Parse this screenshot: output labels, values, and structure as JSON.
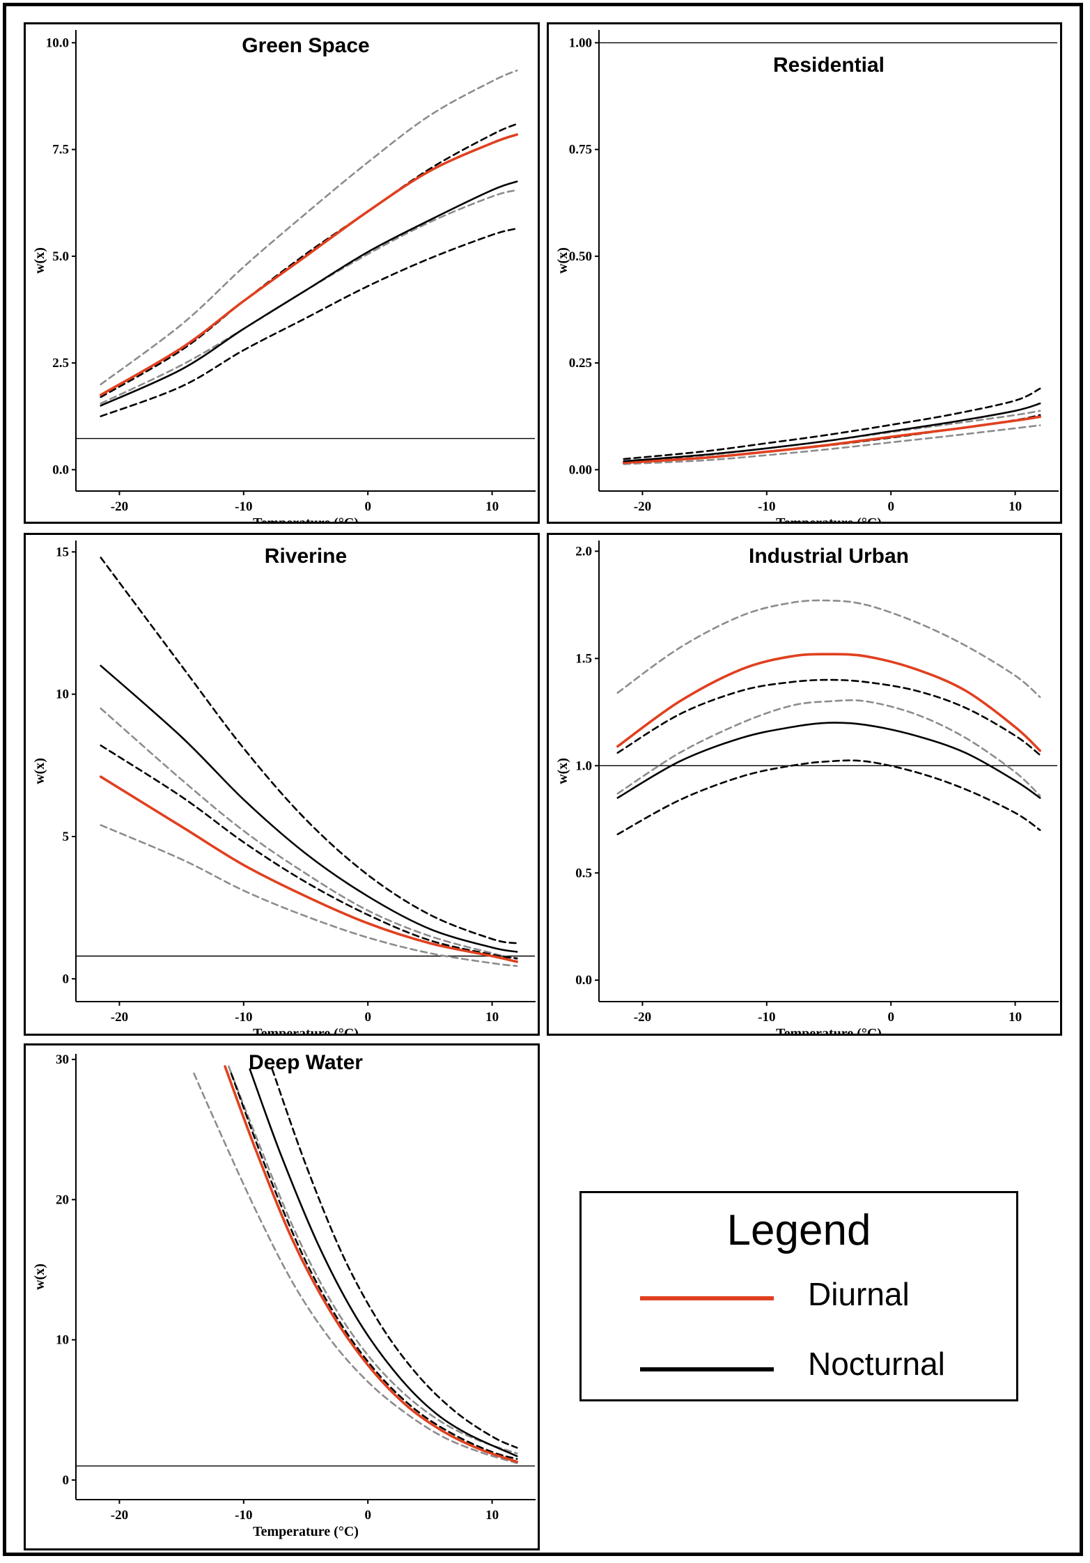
{
  "legend": {
    "title": "Legend",
    "items": [
      {
        "label": "Diurnal",
        "color": "#e0401f"
      },
      {
        "label": "Nocturnal",
        "color": "#000000"
      }
    ]
  },
  "colors": {
    "diurnal": "#e0401f",
    "nocturnal": "#000000",
    "diurnal_ci": "#8c8c8c",
    "nocturnal_ci": "#000000"
  },
  "chart_data": [
    {
      "type": "line",
      "title": "Green Space",
      "xlabel": "Temperature (°C)",
      "ylabel": "w(x)",
      "xlim": [
        -23.5,
        13.5
      ],
      "ylim": [
        -0.5,
        10.3
      ],
      "hline": 0.73,
      "xticks": [
        -20,
        -10,
        0,
        10
      ],
      "xtick_labels": [
        "-20",
        "-10",
        "0",
        "10"
      ],
      "yticks": [
        0,
        2.5,
        5,
        7.5,
        10
      ],
      "ytick_labels": [
        "0.0",
        "2.5",
        "5.0",
        "7.5",
        "10.0"
      ],
      "x": [
        -21.5,
        -15,
        -10,
        -5,
        0,
        5,
        10,
        12
      ],
      "series": [
        {
          "name": "Diurnal",
          "role": "diurnal",
          "values": [
            1.75,
            2.85,
            3.95,
            5.0,
            6.05,
            7.0,
            7.65,
            7.85
          ]
        },
        {
          "name": "",
          "role": "diurnal_ci",
          "values": [
            2.0,
            3.4,
            4.75,
            6.0,
            7.2,
            8.3,
            9.1,
            9.35
          ]
        },
        {
          "name": "",
          "role": "diurnal_ci",
          "values": [
            1.55,
            2.45,
            3.3,
            4.2,
            5.05,
            5.8,
            6.4,
            6.55
          ]
        },
        {
          "name": "Nocturnal",
          "role": "nocturnal",
          "values": [
            1.5,
            2.35,
            3.3,
            4.2,
            5.1,
            5.85,
            6.55,
            6.75
          ]
        },
        {
          "name": "",
          "role": "nocturnal_ci",
          "values": [
            1.7,
            2.8,
            3.95,
            5.05,
            6.05,
            7.05,
            7.85,
            8.1
          ]
        },
        {
          "name": "",
          "role": "nocturnal_ci",
          "values": [
            1.25,
            1.95,
            2.8,
            3.55,
            4.3,
            4.95,
            5.5,
            5.65
          ]
        }
      ]
    },
    {
      "type": "line",
      "title": "Residential",
      "xlabel": "Temperature (°C)",
      "ylabel": "w(x)",
      "xlim": [
        -23.5,
        13.5
      ],
      "ylim": [
        -0.05,
        1.03
      ],
      "hline": 1.0,
      "xticks": [
        -20,
        -10,
        0,
        10
      ],
      "xtick_labels": [
        "-20",
        "-10",
        "0",
        "10"
      ],
      "yticks": [
        0,
        0.25,
        0.5,
        0.75,
        1.0
      ],
      "ytick_labels": [
        "0.00",
        "0.25",
        "0.50",
        "0.75",
        "1.00"
      ],
      "x": [
        -21.5,
        -15,
        -10,
        -5,
        0,
        5,
        10,
        12
      ],
      "series": [
        {
          "name": "Diurnal",
          "role": "diurnal",
          "values": [
            0.016,
            0.028,
            0.042,
            0.058,
            0.077,
            0.095,
            0.115,
            0.124
          ]
        },
        {
          "name": "",
          "role": "diurnal_ci",
          "values": [
            0.02,
            0.034,
            0.05,
            0.068,
            0.088,
            0.108,
            0.128,
            0.138
          ]
        },
        {
          "name": "",
          "role": "diurnal_ci",
          "values": [
            0.013,
            0.022,
            0.034,
            0.048,
            0.064,
            0.08,
            0.097,
            0.104
          ]
        },
        {
          "name": "Nocturnal",
          "role": "nocturnal",
          "values": [
            0.02,
            0.035,
            0.05,
            0.068,
            0.09,
            0.112,
            0.138,
            0.155
          ]
        },
        {
          "name": "",
          "role": "nocturnal_ci",
          "values": [
            0.025,
            0.043,
            0.062,
            0.082,
            0.105,
            0.13,
            0.162,
            0.19
          ]
        },
        {
          "name": "",
          "role": "nocturnal_ci",
          "values": [
            0.017,
            0.029,
            0.042,
            0.057,
            0.075,
            0.095,
            0.116,
            0.128
          ]
        }
      ]
    },
    {
      "type": "line",
      "title": "Riverine",
      "xlabel": "Temperature (°C)",
      "ylabel": "w(x)",
      "xlim": [
        -23.5,
        13.5
      ],
      "ylim": [
        -0.8,
        15.4
      ],
      "hline": 0.8,
      "xticks": [
        -20,
        -10,
        0,
        10
      ],
      "xtick_labels": [
        "-20",
        "-10",
        "0",
        "10"
      ],
      "yticks": [
        0,
        5,
        10,
        15
      ],
      "ytick_labels": [
        "0",
        "5",
        "10",
        "15"
      ],
      "x": [
        -21.5,
        -15,
        -10,
        -5,
        0,
        5,
        10,
        12
      ],
      "series": [
        {
          "name": "Diurnal",
          "role": "diurnal",
          "values": [
            7.1,
            5.35,
            4.0,
            2.9,
            1.95,
            1.25,
            0.8,
            0.6
          ]
        },
        {
          "name": "",
          "role": "diurnal_ci",
          "values": [
            9.5,
            7.0,
            5.2,
            3.7,
            2.4,
            1.5,
            0.9,
            0.7
          ]
        },
        {
          "name": "",
          "role": "diurnal_ci",
          "values": [
            5.4,
            4.2,
            3.1,
            2.2,
            1.45,
            0.9,
            0.55,
            0.45
          ]
        },
        {
          "name": "Nocturnal",
          "role": "nocturnal",
          "values": [
            11.0,
            8.5,
            6.3,
            4.4,
            2.9,
            1.75,
            1.1,
            0.95
          ]
        },
        {
          "name": "",
          "role": "nocturnal_ci",
          "values": [
            14.8,
            11.0,
            8.1,
            5.6,
            3.65,
            2.25,
            1.4,
            1.25
          ]
        },
        {
          "name": "",
          "role": "nocturnal_ci",
          "values": [
            8.2,
            6.4,
            4.8,
            3.4,
            2.25,
            1.35,
            0.85,
            0.72
          ]
        }
      ]
    },
    {
      "type": "line",
      "title": "Industrial Urban",
      "xlabel": "Temperature (°C)",
      "ylabel": "w(x)",
      "xlim": [
        -23.5,
        13.5
      ],
      "ylim": [
        -0.1,
        2.05
      ],
      "hline": 1.0,
      "xticks": [
        -20,
        -10,
        0,
        10
      ],
      "xtick_labels": [
        "-20",
        "-10",
        "0",
        "10"
      ],
      "yticks": [
        0,
        0.5,
        1.0,
        1.5,
        2.0
      ],
      "ytick_labels": [
        "0.0",
        "0.5",
        "1.0",
        "1.5",
        "2.0"
      ],
      "x": [
        -22,
        -17,
        -12,
        -8,
        -5,
        -2,
        2,
        6,
        10,
        12
      ],
      "series": [
        {
          "name": "Diurnal",
          "role": "diurnal",
          "values": [
            1.09,
            1.3,
            1.45,
            1.51,
            1.52,
            1.51,
            1.45,
            1.35,
            1.18,
            1.07
          ]
        },
        {
          "name": "",
          "role": "diurnal_ci",
          "values": [
            1.34,
            1.55,
            1.7,
            1.76,
            1.77,
            1.75,
            1.67,
            1.56,
            1.42,
            1.32
          ]
        },
        {
          "name": "",
          "role": "diurnal_ci",
          "values": [
            0.87,
            1.06,
            1.2,
            1.28,
            1.3,
            1.3,
            1.24,
            1.13,
            0.97,
            0.86
          ]
        },
        {
          "name": "Nocturnal",
          "role": "nocturnal",
          "values": [
            0.85,
            1.02,
            1.13,
            1.18,
            1.2,
            1.19,
            1.14,
            1.06,
            0.93,
            0.85
          ]
        },
        {
          "name": "",
          "role": "nocturnal_ci",
          "values": [
            1.06,
            1.24,
            1.35,
            1.39,
            1.4,
            1.39,
            1.35,
            1.27,
            1.14,
            1.05
          ]
        },
        {
          "name": "",
          "role": "nocturnal_ci",
          "values": [
            0.68,
            0.84,
            0.95,
            1.0,
            1.02,
            1.02,
            0.97,
            0.89,
            0.78,
            0.7
          ]
        }
      ]
    },
    {
      "type": "line",
      "title": "Deep Water",
      "xlabel": "Temperature (°C)",
      "ylabel": "w(x)",
      "xlim": [
        -23.5,
        13.5
      ],
      "ylim": [
        -1.4,
        30.4
      ],
      "hline": 1.0,
      "xticks": [
        -20,
        -10,
        0,
        10
      ],
      "xtick_labels": [
        "-20",
        "-10",
        "0",
        "10"
      ],
      "yticks": [
        0,
        10,
        20,
        30
      ],
      "ytick_labels": [
        "0",
        "10",
        "20",
        "30"
      ],
      "series": [
        {
          "name": "Diurnal",
          "role": "diurnal",
          "x": [
            -11.5,
            -9,
            -6,
            -3,
            0,
            3,
            6,
            9,
            12
          ],
          "values": [
            29.5,
            23.5,
            17.0,
            12.0,
            8.2,
            5.4,
            3.5,
            2.2,
            1.3
          ]
        },
        {
          "name": "",
          "role": "diurnal_ci",
          "x": [
            -14,
            -12,
            -9,
            -6,
            -3,
            0,
            3,
            6,
            9,
            12
          ],
          "values": [
            29.0,
            25.0,
            19.2,
            14.0,
            10.0,
            7.0,
            4.8,
            3.1,
            2.0,
            1.2
          ]
        },
        {
          "name": "",
          "role": "diurnal_ci",
          "x": [
            -11.2,
            -9,
            -6,
            -3,
            0,
            3,
            6,
            9,
            12
          ],
          "values": [
            29.5,
            24.5,
            18.0,
            12.8,
            8.9,
            6.1,
            4.1,
            2.8,
            1.9
          ]
        },
        {
          "name": "Nocturnal",
          "role": "nocturnal",
          "x": [
            -9.5,
            -7,
            -4,
            -1,
            2,
            5,
            8,
            12
          ],
          "values": [
            29.3,
            23.2,
            16.8,
            11.7,
            7.9,
            5.1,
            3.3,
            1.7
          ]
        },
        {
          "name": "",
          "role": "nocturnal_ci",
          "x": [
            -7.7,
            -5,
            -2,
            1,
            4,
            7,
            10,
            12
          ],
          "values": [
            29.3,
            22.5,
            16.0,
            11.1,
            7.5,
            4.9,
            3.1,
            2.3
          ]
        },
        {
          "name": "",
          "role": "nocturnal_ci",
          "x": [
            -11.0,
            -8,
            -5,
            -2,
            1,
            4,
            7,
            10,
            12
          ],
          "values": [
            29.0,
            21.8,
            15.6,
            10.9,
            7.4,
            4.9,
            3.2,
            2.0,
            1.5
          ]
        }
      ]
    }
  ]
}
